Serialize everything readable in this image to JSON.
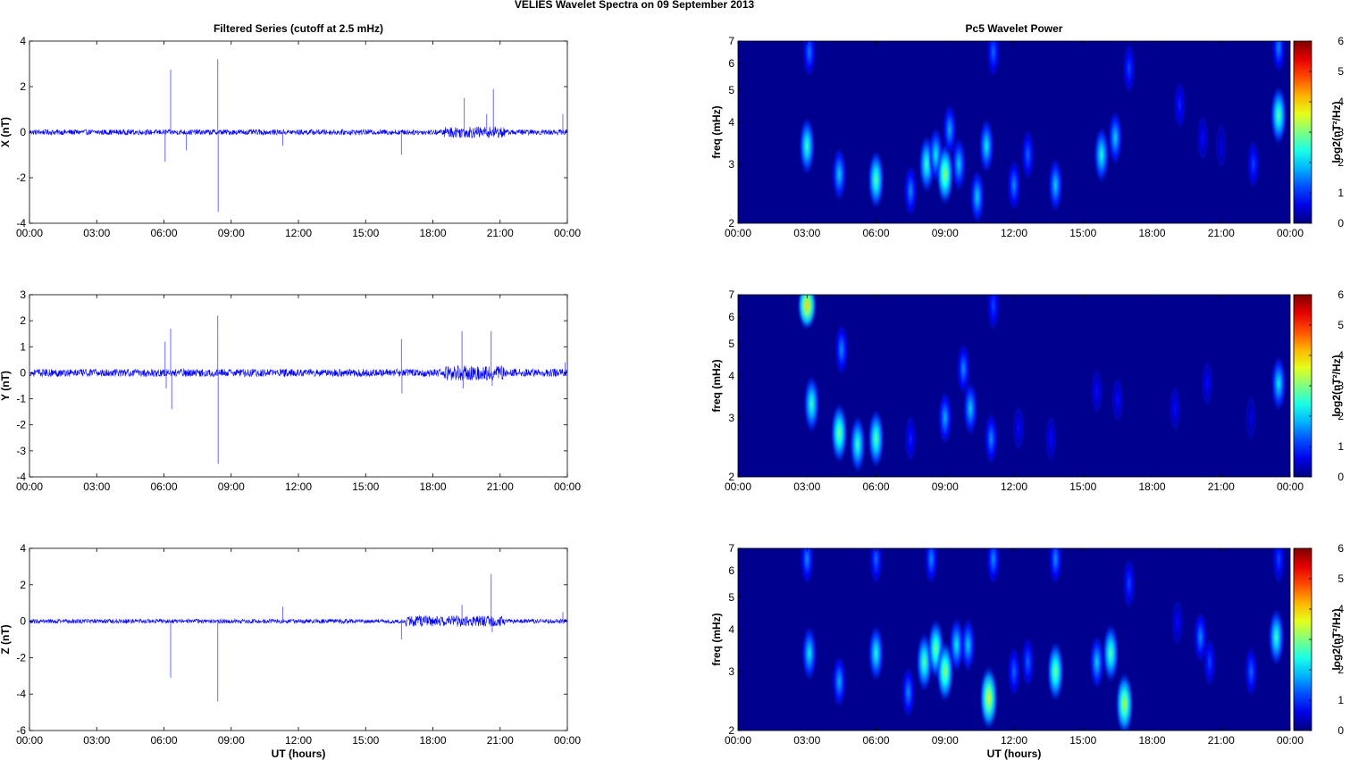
{
  "figure_title": "VELIES Wavelet Spectra on 09 September 2013",
  "colors": {
    "trace": "#0000ff",
    "background": "#00008f"
  },
  "chart_data": [
    {
      "type": "line",
      "title": "Filtered Series (cutoff at 2.5 mHz)",
      "xlabel": "",
      "ylabel": "X (nT)",
      "x_ticks": [
        "00:00",
        "03:00",
        "06:00",
        "09:00",
        "12:00",
        "15:00",
        "18:00",
        "21:00",
        "00:00"
      ],
      "x_range_hours": [
        0,
        24
      ],
      "ylim": [
        -4,
        4
      ],
      "y_ticks": [
        -4,
        -2,
        0,
        2,
        4
      ],
      "baseline_noise": 0.12,
      "spikes": [
        [
          6.05,
          -1.3
        ],
        [
          6.3,
          2.75
        ],
        [
          7.0,
          -0.8
        ],
        [
          8.4,
          3.2
        ],
        [
          8.42,
          -3.5
        ],
        [
          11.3,
          -0.6
        ],
        [
          16.6,
          -1.0
        ],
        [
          19.4,
          1.5
        ],
        [
          20.4,
          0.8
        ],
        [
          20.7,
          1.9
        ],
        [
          23.8,
          0.8
        ]
      ],
      "active_intervals": [
        [
          18.5,
          21.2,
          0.25
        ]
      ]
    },
    {
      "type": "heatmap",
      "title": "Pc5 Wavelet Power",
      "xlabel": "",
      "ylabel": "freq (mHz)",
      "x_ticks": [
        "00:00",
        "03:00",
        "06:00",
        "09:00",
        "12:00",
        "15:00",
        "18:00",
        "21:00",
        "00:00"
      ],
      "y_ticks": [
        2,
        3,
        4,
        5,
        6,
        7
      ],
      "y_scale": "log",
      "ylim": [
        2,
        7
      ],
      "colorbar": {
        "label": "log2(nT²/Hz)",
        "range": [
          0,
          6
        ],
        "ticks": [
          0,
          1,
          2,
          3,
          4,
          5,
          6
        ],
        "colormap": "jet"
      },
      "blobs": [
        [
          3.0,
          3.4,
          2.6
        ],
        [
          3.1,
          6.5,
          1.5
        ],
        [
          4.4,
          2.8,
          2.0
        ],
        [
          6.0,
          2.7,
          2.8
        ],
        [
          7.5,
          2.5,
          1.6
        ],
        [
          8.2,
          3.0,
          2.6
        ],
        [
          8.6,
          3.2,
          2.2
        ],
        [
          9.0,
          2.8,
          3.2
        ],
        [
          9.2,
          3.8,
          1.8
        ],
        [
          9.6,
          3.0,
          2.0
        ],
        [
          10.4,
          2.4,
          2.0
        ],
        [
          10.8,
          3.4,
          2.2
        ],
        [
          11.1,
          6.5,
          1.4
        ],
        [
          12.0,
          2.6,
          1.6
        ],
        [
          12.6,
          3.2,
          1.4
        ],
        [
          13.8,
          2.6,
          2.0
        ],
        [
          15.8,
          3.2,
          2.4
        ],
        [
          16.4,
          3.6,
          2.0
        ],
        [
          17.0,
          5.8,
          1.2
        ],
        [
          19.2,
          4.5,
          1.0
        ],
        [
          20.2,
          3.6,
          0.8
        ],
        [
          21.0,
          3.4,
          0.6
        ],
        [
          22.4,
          3.0,
          1.2
        ],
        [
          23.5,
          4.2,
          2.8
        ],
        [
          23.5,
          6.7,
          1.6
        ]
      ]
    },
    {
      "type": "line",
      "title": "",
      "xlabel": "",
      "ylabel": "Y (nT)",
      "x_ticks": [
        "00:00",
        "03:00",
        "06:00",
        "09:00",
        "12:00",
        "15:00",
        "18:00",
        "21:00",
        "00:00"
      ],
      "x_range_hours": [
        0,
        24
      ],
      "ylim": [
        -4,
        3
      ],
      "y_ticks": [
        -4,
        -3,
        -2,
        -1,
        0,
        1,
        2,
        3
      ],
      "baseline_noise": 0.15,
      "spikes": [
        [
          6.05,
          1.2
        ],
        [
          6.1,
          -0.6
        ],
        [
          6.3,
          1.7
        ],
        [
          6.35,
          -1.4
        ],
        [
          8.4,
          2.2
        ],
        [
          8.42,
          -3.5
        ],
        [
          16.6,
          1.3
        ],
        [
          16.62,
          -0.8
        ],
        [
          19.3,
          1.6
        ],
        [
          19.35,
          -0.6
        ],
        [
          20.6,
          1.6
        ],
        [
          20.65,
          -0.5
        ],
        [
          23.9,
          0.4
        ]
      ],
      "active_intervals": [
        [
          18.5,
          21.2,
          0.3
        ]
      ]
    },
    {
      "type": "heatmap",
      "title": "",
      "xlabel": "",
      "ylabel": "freq (mHz)",
      "x_ticks": [
        "00:00",
        "03:00",
        "06:00",
        "09:00",
        "12:00",
        "15:00",
        "18:00",
        "21:00",
        "00:00"
      ],
      "y_ticks": [
        2,
        3,
        4,
        5,
        6,
        7
      ],
      "y_scale": "log",
      "ylim": [
        2,
        7
      ],
      "colorbar": {
        "label": "log2(nT²/Hz)",
        "range": [
          0,
          6
        ],
        "ticks": [
          0,
          1,
          2,
          3,
          4,
          5,
          6
        ],
        "colormap": "jet"
      },
      "blobs": [
        [
          3.0,
          6.5,
          4.0
        ],
        [
          3.2,
          3.3,
          2.6
        ],
        [
          4.4,
          2.7,
          3.0
        ],
        [
          4.5,
          4.8,
          1.6
        ],
        [
          5.2,
          2.5,
          2.6
        ],
        [
          6.0,
          2.6,
          2.8
        ],
        [
          7.5,
          2.6,
          1.0
        ],
        [
          9.0,
          3.0,
          1.8
        ],
        [
          9.8,
          4.2,
          1.6
        ],
        [
          10.1,
          3.2,
          2.0
        ],
        [
          11.0,
          2.6,
          1.6
        ],
        [
          11.1,
          6.5,
          1.2
        ],
        [
          12.2,
          2.8,
          0.8
        ],
        [
          13.6,
          2.6,
          0.8
        ],
        [
          15.6,
          3.6,
          0.8
        ],
        [
          16.5,
          3.4,
          0.8
        ],
        [
          19.0,
          3.2,
          0.8
        ],
        [
          20.4,
          3.8,
          0.8
        ],
        [
          22.3,
          3.0,
          0.6
        ],
        [
          23.5,
          3.8,
          2.2
        ]
      ]
    },
    {
      "type": "line",
      "title": "",
      "xlabel": "UT (hours)",
      "ylabel": "Z (nT)",
      "x_ticks": [
        "00:00",
        "03:00",
        "06:00",
        "09:00",
        "12:00",
        "15:00",
        "18:00",
        "21:00",
        "00:00"
      ],
      "x_range_hours": [
        0,
        24
      ],
      "ylim": [
        -6,
        4
      ],
      "y_ticks": [
        -6,
        -4,
        -2,
        0,
        2,
        4
      ],
      "baseline_noise": 0.12,
      "spikes": [
        [
          6.3,
          -3.1
        ],
        [
          8.4,
          -4.4
        ],
        [
          11.3,
          0.8
        ],
        [
          16.6,
          -1.0
        ],
        [
          19.3,
          0.9
        ],
        [
          20.6,
          2.6
        ],
        [
          20.65,
          -0.6
        ],
        [
          23.8,
          0.5
        ]
      ],
      "active_intervals": [
        [
          16.8,
          21.2,
          0.3
        ]
      ]
    },
    {
      "type": "heatmap",
      "title": "",
      "xlabel": "UT (hours)",
      "ylabel": "freq (mHz)",
      "x_ticks": [
        "00:00",
        "03:00",
        "06:00",
        "09:00",
        "12:00",
        "15:00",
        "18:00",
        "21:00",
        "00:00"
      ],
      "y_ticks": [
        2,
        3,
        4,
        5,
        6,
        7
      ],
      "y_scale": "log",
      "ylim": [
        2,
        7
      ],
      "colorbar": {
        "label": "log2(nT²/Hz)",
        "range": [
          0,
          6
        ],
        "ticks": [
          0,
          1,
          2,
          3,
          4,
          5,
          6
        ],
        "colormap": "jet"
      },
      "blobs": [
        [
          3.0,
          6.5,
          1.6
        ],
        [
          3.1,
          3.4,
          2.2
        ],
        [
          4.4,
          2.8,
          1.8
        ],
        [
          6.0,
          3.4,
          2.4
        ],
        [
          6.0,
          6.5,
          1.4
        ],
        [
          7.4,
          2.6,
          1.6
        ],
        [
          8.1,
          3.2,
          2.8
        ],
        [
          8.6,
          3.5,
          3.0
        ],
        [
          8.4,
          6.5,
          1.6
        ],
        [
          9.0,
          3.0,
          3.2
        ],
        [
          9.5,
          3.6,
          2.2
        ],
        [
          10.0,
          3.6,
          2.0
        ],
        [
          10.9,
          2.5,
          3.6
        ],
        [
          11.1,
          6.5,
          1.6
        ],
        [
          12.0,
          3.0,
          1.4
        ],
        [
          12.6,
          3.2,
          1.4
        ],
        [
          13.8,
          3.0,
          3.0
        ],
        [
          13.8,
          6.5,
          1.6
        ],
        [
          15.6,
          3.2,
          2.0
        ],
        [
          16.2,
          3.4,
          2.8
        ],
        [
          16.8,
          2.4,
          3.4
        ],
        [
          17.0,
          5.5,
          1.2
        ],
        [
          19.1,
          4.2,
          0.8
        ],
        [
          20.1,
          3.8,
          1.6
        ],
        [
          20.5,
          3.2,
          1.2
        ],
        [
          22.3,
          3.0,
          1.4
        ],
        [
          23.4,
          3.8,
          2.6
        ],
        [
          23.5,
          6.5,
          1.2
        ]
      ]
    }
  ]
}
